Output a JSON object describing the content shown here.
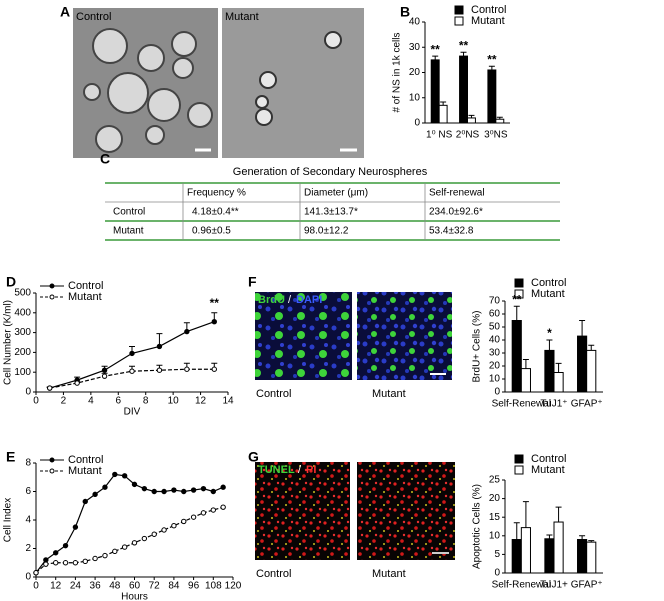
{
  "panel_labels": [
    "A",
    "C"
  ],
  "images": {
    "A": {
      "left": "Control",
      "right": "Mutant"
    },
    "F": {
      "stain": [
        "BrdU",
        "/",
        "DAPI"
      ],
      "left": "Control",
      "right": "Mutant"
    },
    "G": {
      "stain": [
        "TUNEL",
        "/",
        "PI"
      ],
      "left": "Control",
      "right": "Mutant"
    }
  },
  "table": {
    "title": "Generation of Secondary Neurospheres",
    "header": [
      "Frequency %",
      "Diameter (μm)",
      "Self-renewal"
    ],
    "rows": [
      {
        "label": "Control",
        "cells": [
          "4.18±0.4**",
          "141.3±13.7*",
          "234.0±92.6*"
        ]
      },
      {
        "label": "Mutant",
        "cells": [
          "0.96±0.5",
          "98.0±12.2",
          "53.4±32.8"
        ]
      }
    ]
  },
  "chart_data": [
    {
      "type": "bar",
      "label": "B",
      "ylabel": "# of NS in 1k cells",
      "categories": [
        "1⁰ NS",
        "2⁰NS",
        "3⁰NS"
      ],
      "series": [
        {
          "name": "Control",
          "color": "#000000",
          "values": [
            25,
            26.5,
            21
          ],
          "errors": [
            1.5,
            1.5,
            1.5
          ],
          "annotations": [
            "**",
            "**",
            "**"
          ]
        },
        {
          "name": "Mutant",
          "color": "#ffffff",
          "values": [
            7,
            2,
            1.5
          ],
          "errors": [
            1.3,
            1,
            0.8
          ]
        }
      ],
      "ylim": [
        0,
        40
      ],
      "yticks": [
        0,
        10,
        20,
        30,
        40
      ]
    },
    {
      "type": "line",
      "label": "D",
      "ylabel": "Cell Number (K/ml)",
      "xlabel": "DIV",
      "x": [
        1,
        3,
        5,
        7,
        9,
        11,
        13
      ],
      "series": [
        {
          "name": "Control",
          "color": "#000000",
          "style": "solid",
          "marker": "filled",
          "values": [
            20,
            60,
            110,
            195,
            230,
            305,
            355
          ],
          "errors": [
            5,
            15,
            20,
            35,
            65,
            45,
            45
          ],
          "annotations": [
            null,
            null,
            null,
            null,
            null,
            null,
            "**"
          ]
        },
        {
          "name": "Mutant",
          "color": "#000000",
          "style": "dashed",
          "marker": "open",
          "values": [
            20,
            45,
            80,
            105,
            110,
            115,
            115
          ],
          "errors": [
            3,
            10,
            15,
            25,
            25,
            30,
            30
          ]
        }
      ],
      "xlim": [
        0,
        14
      ],
      "xticks": [
        0,
        2,
        4,
        6,
        8,
        10,
        12,
        14
      ],
      "ylim": [
        0,
        500
      ],
      "yticks": [
        0,
        100,
        200,
        300,
        400,
        500
      ]
    },
    {
      "type": "line",
      "label": "E",
      "ylabel": "Cell Index",
      "xlabel": "Hours",
      "x": [
        0,
        6,
        12,
        18,
        24,
        30,
        36,
        42,
        48,
        54,
        60,
        66,
        72,
        78,
        84,
        90,
        96,
        102,
        108,
        114
      ],
      "series": [
        {
          "name": "Control",
          "color": "#000000",
          "style": "solid",
          "marker": "filled",
          "values": [
            0.3,
            1.2,
            1.7,
            2.2,
            3.5,
            5.3,
            5.8,
            6.3,
            7.2,
            7.1,
            6.5,
            6.2,
            6.0,
            6.0,
            6.1,
            6.0,
            6.1,
            6.2,
            6.0,
            6.3
          ]
        },
        {
          "name": "Mutant",
          "color": "#000000",
          "style": "dashed",
          "marker": "open",
          "values": [
            0.3,
            0.9,
            1.0,
            1.0,
            1.0,
            1.1,
            1.3,
            1.5,
            1.8,
            2.1,
            2.4,
            2.7,
            3.0,
            3.3,
            3.6,
            3.9,
            4.2,
            4.5,
            4.7,
            4.9
          ]
        }
      ],
      "xlim": [
        0,
        120
      ],
      "xticks": [
        0,
        12,
        24,
        36,
        48,
        60,
        72,
        84,
        96,
        108,
        120
      ],
      "ylim": [
        0,
        8
      ],
      "yticks": [
        0,
        2,
        4,
        6,
        8
      ]
    },
    {
      "type": "bar",
      "label": "F",
      "ylabel": "BrdU+ Cells (%)",
      "categories": [
        "Self-Renewal",
        "TuJ1⁺",
        "GFAP⁺"
      ],
      "series": [
        {
          "name": "Control",
          "color": "#000000",
          "values": [
            55,
            32,
            43
          ],
          "errors": [
            11,
            8,
            12
          ],
          "annotations": [
            "**",
            "*",
            null
          ]
        },
        {
          "name": "Mutant",
          "color": "#ffffff",
          "values": [
            18,
            15,
            32
          ],
          "errors": [
            7,
            7,
            4
          ]
        }
      ],
      "ylim": [
        0,
        70
      ],
      "yticks": [
        0,
        10,
        20,
        30,
        40,
        50,
        60,
        70
      ]
    },
    {
      "type": "bar",
      "label": "G",
      "ylabel": "Apoptotic Cells (%)",
      "categories": [
        "Self-Renewal",
        "TuJ1+",
        "GFAP⁺"
      ],
      "series": [
        {
          "name": "Control",
          "color": "#000000",
          "values": [
            9,
            9.2,
            9
          ],
          "errors": [
            4.5,
            1,
            1
          ]
        },
        {
          "name": "Mutant",
          "color": "#ffffff",
          "values": [
            12.2,
            13.7,
            8.3
          ],
          "errors": [
            7,
            4,
            0.4
          ]
        }
      ],
      "ylim": [
        0,
        25
      ],
      "yticks": [
        0,
        5,
        10,
        15,
        20,
        25
      ]
    }
  ]
}
